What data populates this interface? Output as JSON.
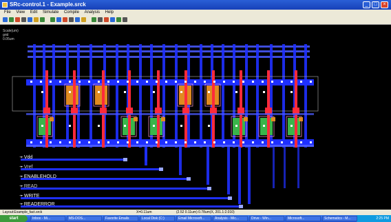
{
  "window": {
    "title": "SRc-control.1 - Example.srck",
    "buttons": [
      "_",
      "□",
      "×"
    ]
  },
  "menu": [
    "File",
    "View",
    "Edit",
    "Simulate",
    "Compile",
    "Analysis",
    "Help"
  ],
  "toolbar_icons": [
    "new-icon",
    "save-icon",
    "pencil-icon",
    "print-icon",
    "cut-icon",
    "copy-icon",
    "zoom-in-icon",
    "zoom-out-icon",
    "fit-icon",
    "delete-icon",
    "arrow-icon",
    "wire-icon",
    "cell-icon",
    "layer-icon",
    "snap-icon",
    "run-icon",
    "ruler-icon",
    "probe-icon",
    "grid-icon"
  ],
  "layout_info": {
    "line1": "Scale(um)",
    "line2": "grid",
    "line3": "0.05um"
  },
  "pins": [
    "Vdd",
    "Vref",
    "ENABLEHOLD",
    "READ",
    "WRITE",
    "READERROR"
  ],
  "colors": {
    "metal1": "#1f30ff",
    "metal2": "#4a5aff",
    "poly": "#ff2a3a",
    "diff_orange": "#e08a20",
    "diff_green": "#3ab54a",
    "contact": "#ffffff",
    "via": "#9aa8ff"
  },
  "status": {
    "left": "Layout:Example_fact.srck",
    "mid": "X=0.11um",
    "right": "(2.52 0.11um) 0.78um(X, 201.1:2.010)"
  },
  "taskbar": {
    "start": "start",
    "items": [
      "Inbox - Mi...",
      "MS-DOS...",
      "Favorite Emails",
      "Local Disk (C:)",
      "Email Microsoft...",
      "Analysis - Mic...",
      "Drive - Win...",
      "Microsoft...",
      "Schematics - M..."
    ],
    "clock": "2:25 PM"
  }
}
